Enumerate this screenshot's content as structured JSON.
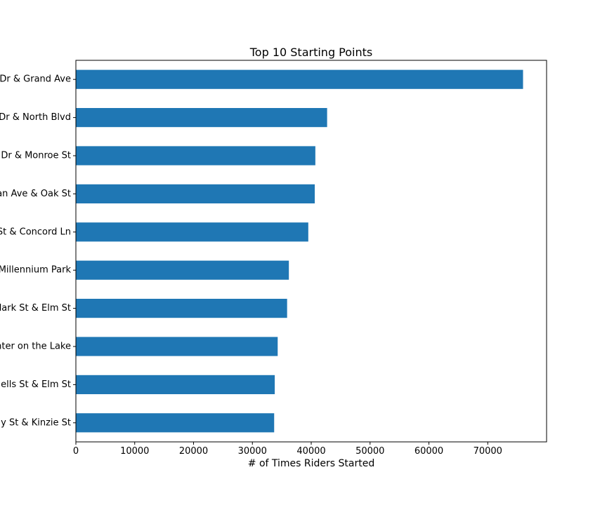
{
  "chart_data": {
    "type": "bar",
    "orientation": "horizontal",
    "title": "Top 10 Starting Points",
    "xlabel": "# of Times Riders Started",
    "ylabel": "",
    "categories": [
      "Dr & Grand Ave",
      "Dr & North Blvd",
      "Dr & Monroe St",
      "an Ave & Oak St",
      "St & Concord Ln",
      "Millennium Park",
      "lark St & Elm St",
      "nter on the Lake",
      "ells St & Elm St",
      "y St & Kinzie St"
    ],
    "values": [
      76000,
      42700,
      40700,
      40600,
      39500,
      36200,
      35900,
      34300,
      33800,
      33700
    ],
    "xlim": [
      0,
      80000
    ],
    "xticks": [
      0,
      10000,
      20000,
      30000,
      40000,
      50000,
      60000,
      70000
    ],
    "grid": false,
    "bar_color": "#1f77b4"
  }
}
